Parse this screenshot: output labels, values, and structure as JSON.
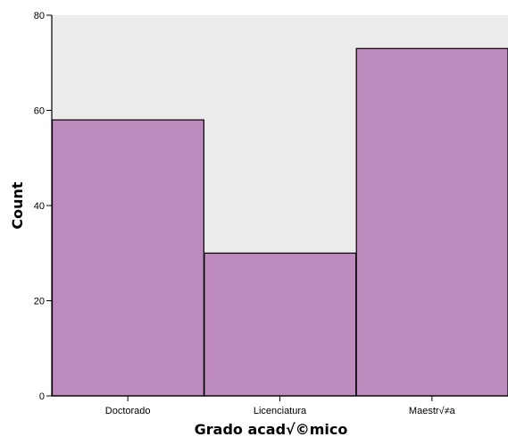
{
  "chart_data": {
    "type": "bar",
    "categories": [
      "Doctorado",
      "Licenciatura",
      "Maestr√≠a"
    ],
    "values": [
      58,
      30,
      73
    ],
    "xlabel": "Grado acad√©mico",
    "ylabel": "Count",
    "ylim": [
      0,
      80
    ],
    "yticks": [
      0,
      20,
      40,
      60,
      80
    ],
    "grid": false,
    "colors": {
      "plot_background": "#ececec",
      "bar_fill": "#bc8abc",
      "bar_stroke": "#000000"
    }
  }
}
